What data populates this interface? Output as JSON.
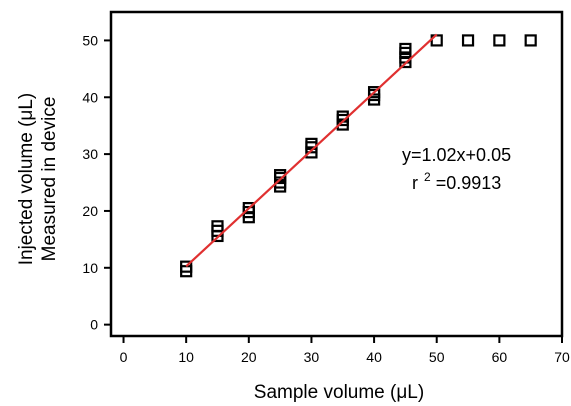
{
  "chart_data": {
    "type": "scatter",
    "xlabel": "Sample volume (μL)",
    "ylabel_lines": [
      "Injected volume (μL)",
      "Measured in device"
    ],
    "xlim": [
      -2,
      70
    ],
    "ylim": [
      -2,
      55
    ],
    "xticks": [
      0,
      10,
      20,
      30,
      40,
      50,
      60,
      70
    ],
    "yticks": [
      0,
      10,
      20,
      30,
      40,
      50
    ],
    "grid": false,
    "legend": "none",
    "colors": {
      "marker": "#000000",
      "fit": "#e03030",
      "axis": "#000000"
    },
    "series": [
      {
        "marker": "open-square",
        "points": [
          [
            10,
            9.4
          ],
          [
            10,
            10.2
          ],
          [
            15,
            15.6
          ],
          [
            15,
            16.5
          ],
          [
            15,
            17.3
          ],
          [
            20,
            18.9
          ],
          [
            20,
            19.8
          ],
          [
            20,
            20.5
          ],
          [
            25,
            24.3
          ],
          [
            25,
            25.0
          ],
          [
            25,
            25.8
          ],
          [
            25,
            26.3
          ],
          [
            30,
            30.3
          ],
          [
            30,
            31.2
          ],
          [
            30,
            31.8
          ],
          [
            35,
            35.2
          ],
          [
            35,
            36.0
          ],
          [
            35,
            36.6
          ],
          [
            40,
            39.6
          ],
          [
            40,
            40.4
          ],
          [
            40,
            40.9
          ],
          [
            45,
            46.2
          ],
          [
            45,
            47.0
          ],
          [
            45,
            47.8
          ],
          [
            45,
            48.5
          ],
          [
            50,
            50
          ],
          [
            55,
            50
          ],
          [
            60,
            50
          ],
          [
            65,
            50
          ]
        ]
      }
    ],
    "fit": {
      "slope": 1.02,
      "intercept": 0.05,
      "x_range": [
        10,
        50
      ]
    },
    "annotations": {
      "equation": "y=1.02x+0.05",
      "r2_prefix": "r",
      "r2_power": "2",
      "r2_value": " =0.9913"
    }
  }
}
